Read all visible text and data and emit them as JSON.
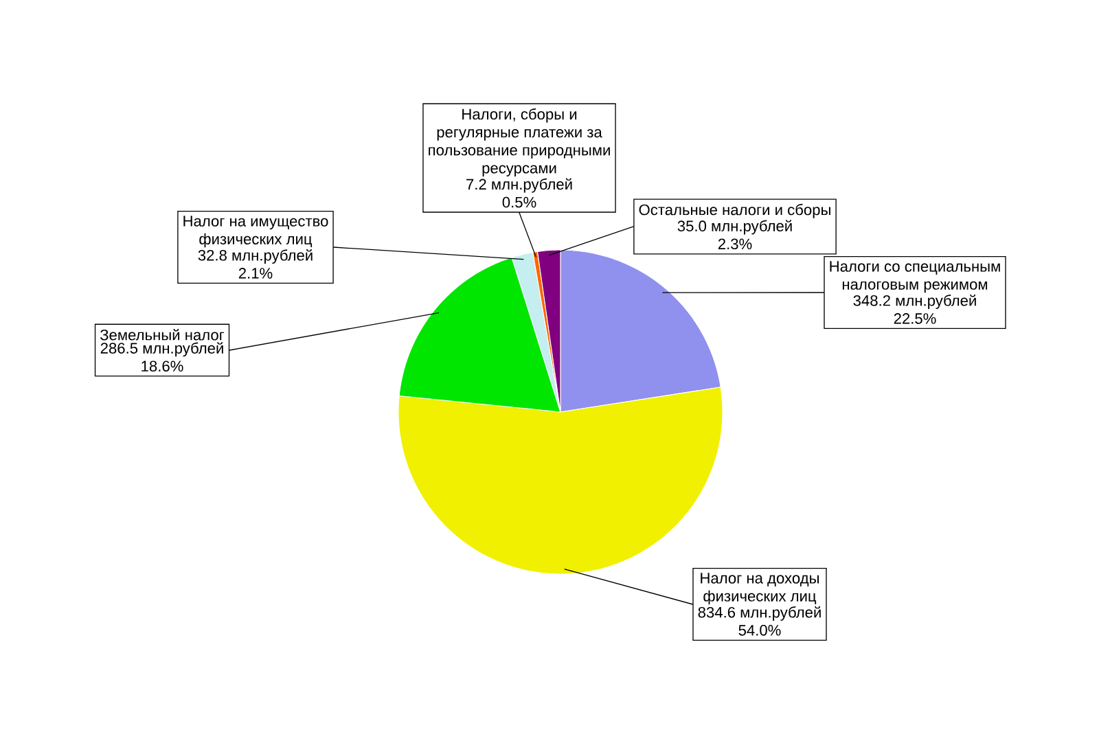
{
  "chart_data": {
    "type": "pie",
    "categories": [
      "Налоги со специальным налоговым режимом",
      "Налог на доходы физических лиц",
      "Земельный налог",
      "Налог на имущество физических лиц",
      "Налоги, сборы и регулярные платежи за пользование природными ресурсами",
      "Остальные налоги и сборы"
    ],
    "values": [
      348.2,
      834.6,
      286.5,
      32.8,
      7.2,
      35.0
    ],
    "value_labels": [
      "348.2 млн.рублей 22.5%",
      "834.6 млн.рублей 54.0%",
      "286.5 млн.рублей 18.6%",
      "32.8 млн.рублей 2.1%",
      "7.2 млн.рублей 0.5%",
      "35.0 млн.рублей 2.3%"
    ],
    "colors": [
      "#9090ee",
      "#f0f000",
      "#00e600",
      "#c4eef0",
      "#ff6600",
      "#800080"
    ]
  }
}
